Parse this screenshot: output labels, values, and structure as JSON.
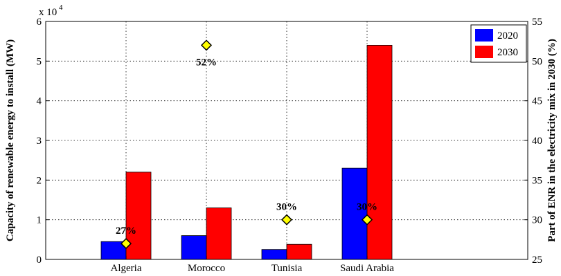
{
  "chart_data": {
    "type": "bar",
    "categories": [
      "Algeria",
      "Morocco",
      "Tunisia",
      "Saudi Arabia"
    ],
    "series": [
      {
        "name": "2020",
        "values": [
          4500,
          6000,
          2500,
          23000
        ],
        "color": "#0000ff"
      },
      {
        "name": "2030",
        "values": [
          22000,
          13000,
          3800,
          54000
        ],
        "color": "#ff0000"
      }
    ],
    "ylabel": "Capacity of renewable energy to install (MW)",
    "ylim": [
      0,
      60000
    ],
    "y_ticks": [
      "0",
      "1",
      "2",
      "3",
      "4",
      "5",
      "6"
    ],
    "y_exponent": "x 10",
    "y_exponent_power": "4",
    "y2label": "Part of ENR in the electricity mix in 2030 (%)",
    "y2lim": [
      25,
      55
    ],
    "y2_ticks": [
      "25",
      "30",
      "35",
      "40",
      "45",
      "50",
      "55"
    ],
    "share_2030": {
      "values": [
        27,
        52,
        30,
        30
      ],
      "labels": [
        "27%",
        "52%",
        "30%",
        "30%"
      ],
      "marker_color": "#ffff00"
    },
    "grid": true,
    "legend_position": "top-right"
  }
}
